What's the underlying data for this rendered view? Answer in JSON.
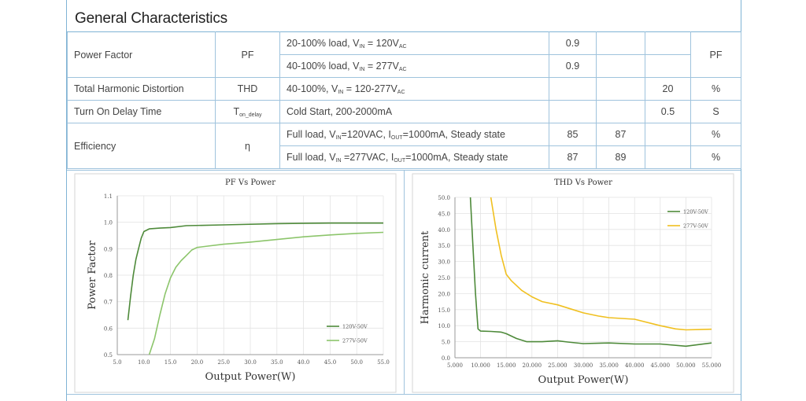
{
  "section_title": "General Characteristics",
  "table": {
    "power_factor": {
      "label": "Power Factor",
      "symbol": "PF",
      "cond1": {
        "pre": "20-100% load, V",
        "sub1": "IN",
        "mid": " = 120V",
        "sub2": "AC"
      },
      "cond2": {
        "pre": "40-100% load, V",
        "sub1": "IN",
        "mid": " = 277V",
        "sub2": "AC"
      },
      "min1": "0.9",
      "min2": "0.9",
      "unit": "PF"
    },
    "thd": {
      "label": "Total Harmonic Distortion",
      "symbol": "THD",
      "cond": {
        "pre": "40-100%, V",
        "sub1": "IN",
        "mid": " = 120-277V",
        "sub2": "AC"
      },
      "max": "20",
      "unit": "%"
    },
    "turn_on": {
      "label": "Turn On Delay Time",
      "symbol_main": "T",
      "symbol_sub": "on_delay",
      "cond": "Cold Start, 200-2000mA",
      "max": "0.5",
      "unit": "S"
    },
    "efficiency": {
      "label": "Efficiency",
      "symbol": "η",
      "cond1": {
        "pre": "Full load, V",
        "sub1": "IN",
        "mid": "=120VAC, I",
        "sub2": "OUT",
        "post": "=1000mA, Steady state"
      },
      "cond2": {
        "pre": "Full load, V",
        "sub1": "IN",
        "mid": " =277VAC, I",
        "sub2": "OUT",
        "post": "=1000mA, Steady state"
      },
      "min1": "85",
      "typ1": "87",
      "min2": "87",
      "typ2": "89",
      "unit": "%"
    }
  },
  "chart_data": [
    {
      "type": "line",
      "title": "PF Vs Power",
      "xlabel": "Output Power(W)",
      "ylabel": "Power Factor",
      "xlim": [
        5,
        55
      ],
      "ylim": [
        0.5,
        1.1
      ],
      "xticks": [
        "5.0",
        "10.0",
        "15.0",
        "20.0",
        "25.0",
        "30.0",
        "35.0",
        "40.0",
        "45.0",
        "50.0",
        "55.0"
      ],
      "yticks": [
        "0.5",
        "0.6",
        "0.7",
        "0.8",
        "0.9",
        "1.0",
        "1.1"
      ],
      "grid": true,
      "legend": "bottom-right",
      "series": [
        {
          "name": "120V-50V",
          "color": "#4e8a3a",
          "points": [
            [
              7,
              0.63
            ],
            [
              7.5,
              0.72
            ],
            [
              8,
              0.8
            ],
            [
              8.5,
              0.86
            ],
            [
              9,
              0.9
            ],
            [
              9.5,
              0.94
            ],
            [
              10,
              0.965
            ],
            [
              11,
              0.975
            ],
            [
              13,
              0.978
            ],
            [
              15,
              0.98
            ],
            [
              18,
              0.987
            ],
            [
              25,
              0.99
            ],
            [
              35,
              0.995
            ],
            [
              45,
              0.997
            ],
            [
              55,
              0.997
            ]
          ]
        },
        {
          "name": "277V-50V",
          "color": "#8cc56b",
          "points": [
            [
              11,
              0.5
            ],
            [
              12,
              0.56
            ],
            [
              13,
              0.65
            ],
            [
              14,
              0.73
            ],
            [
              15,
              0.79
            ],
            [
              16,
              0.83
            ],
            [
              17,
              0.855
            ],
            [
              18,
              0.875
            ],
            [
              19,
              0.895
            ],
            [
              20,
              0.905
            ],
            [
              22,
              0.91
            ],
            [
              25,
              0.917
            ],
            [
              30,
              0.925
            ],
            [
              35,
              0.935
            ],
            [
              40,
              0.945
            ],
            [
              45,
              0.952
            ],
            [
              50,
              0.958
            ],
            [
              55,
              0.962
            ]
          ]
        }
      ]
    },
    {
      "type": "line",
      "title": "THD Vs Power",
      "xlabel": "Output Power(W)",
      "ylabel": "Harmonic current",
      "xlim": [
        5,
        55
      ],
      "ylim": [
        0,
        50
      ],
      "xticks": [
        "5.000",
        "10.000",
        "15.000",
        "20.000",
        "25.000",
        "30.000",
        "35.000",
        "40.000",
        "45.000",
        "50.000",
        "55.000"
      ],
      "yticks": [
        "0.0",
        "5.0",
        "10.0",
        "15.0",
        "20.0",
        "25.0",
        "30.0",
        "35.0",
        "40.0",
        "45.0",
        "50.0"
      ],
      "grid": true,
      "legend": "top-right",
      "series": [
        {
          "name": "120V-50V",
          "color": "#4e8a3a",
          "points": [
            [
              8,
              50
            ],
            [
              8.5,
              35
            ],
            [
              9,
              20
            ],
            [
              9.5,
              9
            ],
            [
              10,
              8.3
            ],
            [
              12,
              8.2
            ],
            [
              14,
              8
            ],
            [
              15,
              7.5
            ],
            [
              17,
              6
            ],
            [
              19,
              5
            ],
            [
              22,
              5
            ],
            [
              25,
              5.3
            ],
            [
              27,
              4.9
            ],
            [
              30,
              4.4
            ],
            [
              35,
              4.6
            ],
            [
              40,
              4.3
            ],
            [
              45,
              4.3
            ],
            [
              50,
              3.6
            ],
            [
              55,
              4.6
            ]
          ]
        },
        {
          "name": "277V-50V",
          "color": "#f0c020",
          "points": [
            [
              12,
              50
            ],
            [
              13,
              40
            ],
            [
              14,
              32
            ],
            [
              15,
              26
            ],
            [
              16,
              24
            ],
            [
              18,
              21
            ],
            [
              20,
              19
            ],
            [
              22,
              17.5
            ],
            [
              25,
              16.5
            ],
            [
              28,
              15
            ],
            [
              30,
              14
            ],
            [
              33,
              13
            ],
            [
              35,
              12.5
            ],
            [
              40,
              12
            ],
            [
              45,
              10
            ],
            [
              48,
              9
            ],
            [
              50,
              8.7
            ],
            [
              55,
              8.9
            ]
          ]
        }
      ]
    }
  ]
}
